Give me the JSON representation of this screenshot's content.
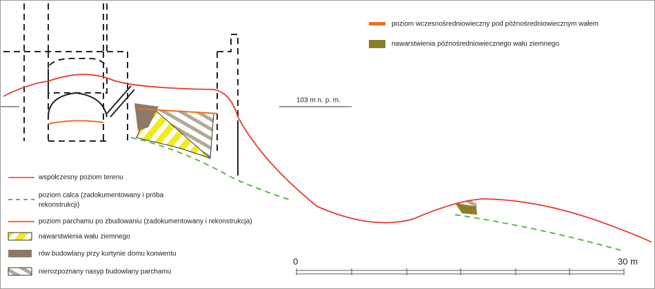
{
  "legend_top": [
    {
      "label": "poziom wczesnośredniowieczny pod późnośredniowiecznym wałem"
    },
    {
      "label": "nawarstwienia późnośredniowiecznego wału ziemnego"
    }
  ],
  "elevation_label": "103 m n. p. m.",
  "legend_bottom": [
    {
      "lines": [
        "współczesny poziom terenu"
      ]
    },
    {
      "lines": [
        "poziom calca  (zadokumentowany i próba",
        "rekonstrukcji)"
      ]
    },
    {
      "lines": [
        "poziom parchamu po zbudowaniu (zadokumentowany i rekonstrukcja)"
      ]
    },
    {
      "lines": [
        "nawarstwienia wału ziemnego"
      ]
    },
    {
      "lines": [
        "rów budowlany przy kurtynie domu konwentu"
      ]
    },
    {
      "lines": [
        "nierozpoznany nasyp budowlany parchamu"
      ]
    }
  ],
  "scale": {
    "start": "0",
    "end": "30 m"
  }
}
